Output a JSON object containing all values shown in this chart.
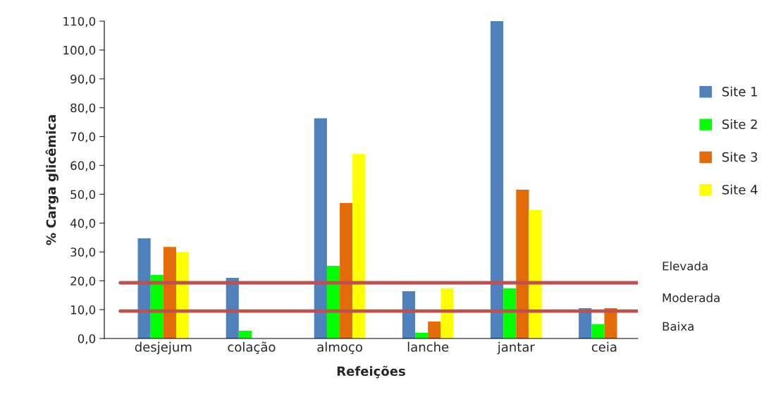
{
  "chart_data": {
    "type": "bar",
    "xlabel": "Refeições",
    "ylabel": "% Carga glicêmica",
    "categories": [
      "desjejum",
      "colação",
      "almoço",
      "lanche",
      "jantar",
      "ceia"
    ],
    "series": [
      {
        "name": "Site 1",
        "color": "#4f81bd",
        "values": [
          34.7,
          21,
          76.3,
          16.4,
          110,
          10.5
        ]
      },
      {
        "name": "Site 2",
        "color": "#00ff00",
        "values": [
          22,
          2.7,
          25.2,
          2,
          17.4,
          5
        ]
      },
      {
        "name": "Site 3",
        "color": "#e36c09",
        "values": [
          31.7,
          null,
          47,
          5.9,
          51.6,
          10.5
        ]
      },
      {
        "name": "Site 4",
        "color": "#ffff00",
        "values": [
          30,
          null,
          64,
          17.4,
          44.5,
          null
        ]
      }
    ],
    "ylim": [
      0,
      110
    ],
    "yticks": [
      {
        "value": 0,
        "label": "0,0"
      },
      {
        "value": 10,
        "label": "10,0"
      },
      {
        "value": 20,
        "label": "20,0"
      },
      {
        "value": 30,
        "label": "30,0"
      },
      {
        "value": 40,
        "label": "40,0"
      },
      {
        "value": 50,
        "label": "50,0"
      },
      {
        "value": 60,
        "label": "60,0"
      },
      {
        "value": 70,
        "label": "70,0"
      },
      {
        "value": 80,
        "label": "80,0"
      },
      {
        "value": 90,
        "label": "90,0"
      },
      {
        "value": 100,
        "label": "100,0"
      },
      {
        "value": 110,
        "label": "110,0"
      }
    ],
    "ref_lines": [
      {
        "axis": "y",
        "value": 19.3,
        "color": "#c0504d"
      },
      {
        "axis": "y",
        "value": 9.5,
        "color": "#c0504d"
      }
    ],
    "annotations": [
      "Elevada",
      "Moderada",
      "Baixa"
    ],
    "legend": "right",
    "grid": false
  }
}
